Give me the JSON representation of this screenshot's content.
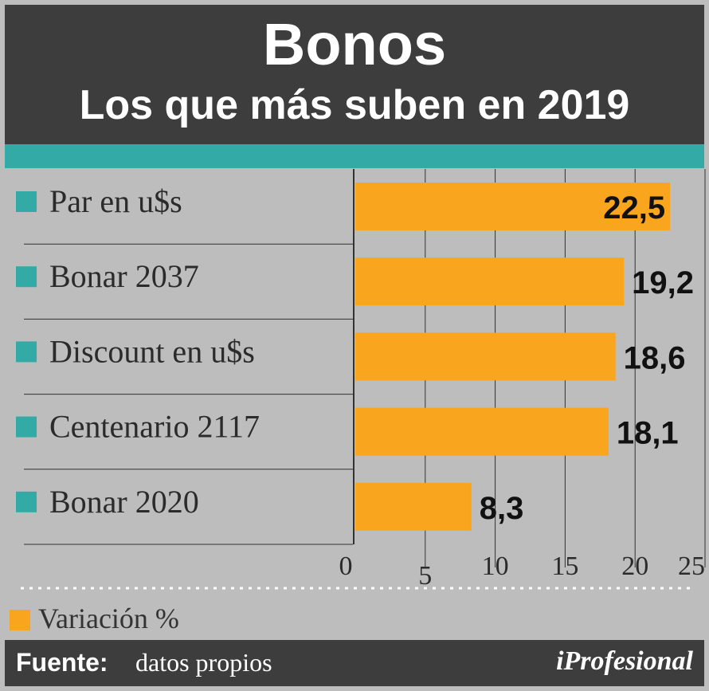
{
  "header": {
    "title": "Bonos",
    "subtitle": "Los que más suben en 2019"
  },
  "legend": {
    "label": "Variación %"
  },
  "footer": {
    "source_key": "Fuente:",
    "source_value": "datos propios",
    "logo": "iProfesional"
  },
  "colors": {
    "bar": "#f9a51e",
    "category_marker": "#33aaa5",
    "header_bg": "#3d3d3d",
    "plot_bg": "#bdbdbd"
  },
  "chart_data": {
    "type": "bar",
    "orientation": "horizontal",
    "categories": [
      "Par en u$s",
      "Bonar 2037",
      "Discount en u$s",
      "Centenario 2117",
      "Bonar 2020"
    ],
    "values": [
      22.5,
      19.2,
      18.6,
      18.1,
      8.3
    ],
    "value_labels": [
      "22,5",
      "19,2",
      "18,6",
      "18,1",
      "8,3"
    ],
    "title": "Bonos",
    "subtitle": "Los que más suben en 2019",
    "xlim": [
      0,
      25
    ],
    "ticks": [
      0,
      5,
      10,
      15,
      20,
      25
    ],
    "tick_labels": [
      "0",
      "5",
      "10",
      "15",
      "20",
      "25"
    ],
    "legend": [
      "Variación %"
    ],
    "grid": true
  }
}
